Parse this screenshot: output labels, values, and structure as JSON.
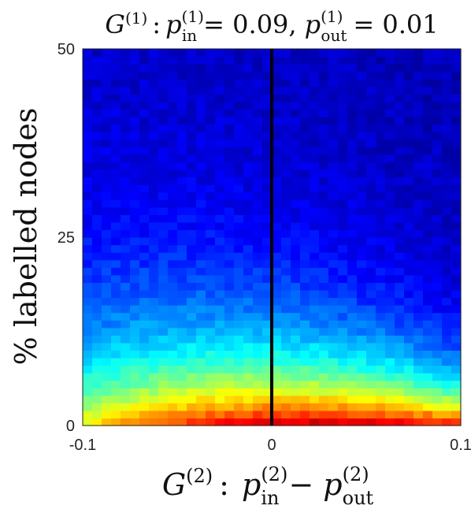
{
  "chart_data": {
    "type": "heatmap",
    "title": {
      "G": "G",
      "sup1": "(1)",
      "colon": ":",
      "p_in": "p",
      "p_in_sup": "(1)",
      "p_in_sub": "in",
      "p_in_val": "= 0.09,",
      "p_out": "p",
      "p_out_sup": "(1)",
      "p_out_sub": "out",
      "p_out_val": "= 0.01"
    },
    "xlabel": {
      "G": "G",
      "sup": "(2)",
      "colon": ":",
      "p1": "p",
      "p1_sup": "(2)",
      "p1_sub": "in",
      "minus": "−",
      "p2": "p",
      "p2_sup": "(2)",
      "p2_sub": "out"
    },
    "ylabel": "% labelled nodes",
    "x_range": [
      -0.1,
      0.1
    ],
    "y_range": [
      0,
      50
    ],
    "x_ticks": [
      {
        "value": -0.1,
        "label": "-0.1"
      },
      {
        "value": 0,
        "label": "0"
      },
      {
        "value": 0.1,
        "label": "0.1"
      }
    ],
    "y_ticks": [
      {
        "value": 0,
        "label": "0"
      },
      {
        "value": 25,
        "label": "25"
      },
      {
        "value": 50,
        "label": "50"
      }
    ],
    "vertical_line_at_x": 0,
    "grid": {
      "cols": 40,
      "rows": 50
    },
    "colormap": "jet",
    "color_scale": "relative intensity 0 (dark blue) to 1 (red)",
    "intensity_model": {
      "peak_x": 0.04,
      "peak_y": 0.5,
      "decay_y_left": 5.5,
      "decay_y_right": 3.2,
      "x_sharpness": 0.9,
      "noise": 0.06
    }
  }
}
